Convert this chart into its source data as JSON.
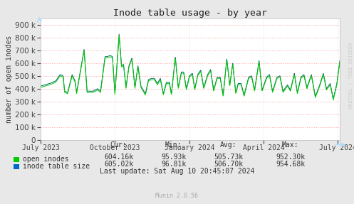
{
  "title": "Inode table usage - by year",
  "ylabel": "number of open inodes",
  "background_color": "#e8e8e8",
  "plot_bg_color": "#ffffff",
  "grid_color_h": "#ff9999",
  "grid_color_v": "#ddaaaa",
  "line1_color": "#00cc00",
  "line2_color": "#006666",
  "ylim": [
    0,
    950000
  ],
  "yticks": [
    0,
    100000,
    200000,
    300000,
    400000,
    500000,
    600000,
    700000,
    800000,
    900000
  ],
  "legend_items": [
    "open inodes",
    "inode table size"
  ],
  "legend_colors": [
    "#00cc00",
    "#0066cc"
  ],
  "stats_header": [
    "Cur:",
    "Min:",
    "Avg:",
    "Max:"
  ],
  "stats_row1": [
    "604.16k",
    "95.93k",
    "505.73k",
    "952.30k"
  ],
  "stats_row2": [
    "605.02k",
    "96.81k",
    "506.70k",
    "954.68k"
  ],
  "last_update": "Last update: Sat Aug 10 20:45:07 2024",
  "munin_label": "Munin 2.0.56",
  "rrdtool_label": "RRDTOOL / TOBI OETIKER",
  "xticklabels": [
    "July 2023",
    "October 2023",
    "January 2024",
    "April 2024",
    "July 2024"
  ],
  "xtick_positions": [
    0.0,
    0.247,
    0.497,
    0.745,
    0.993
  ],
  "figsize": [
    4.97,
    2.87
  ],
  "dpi": 100
}
